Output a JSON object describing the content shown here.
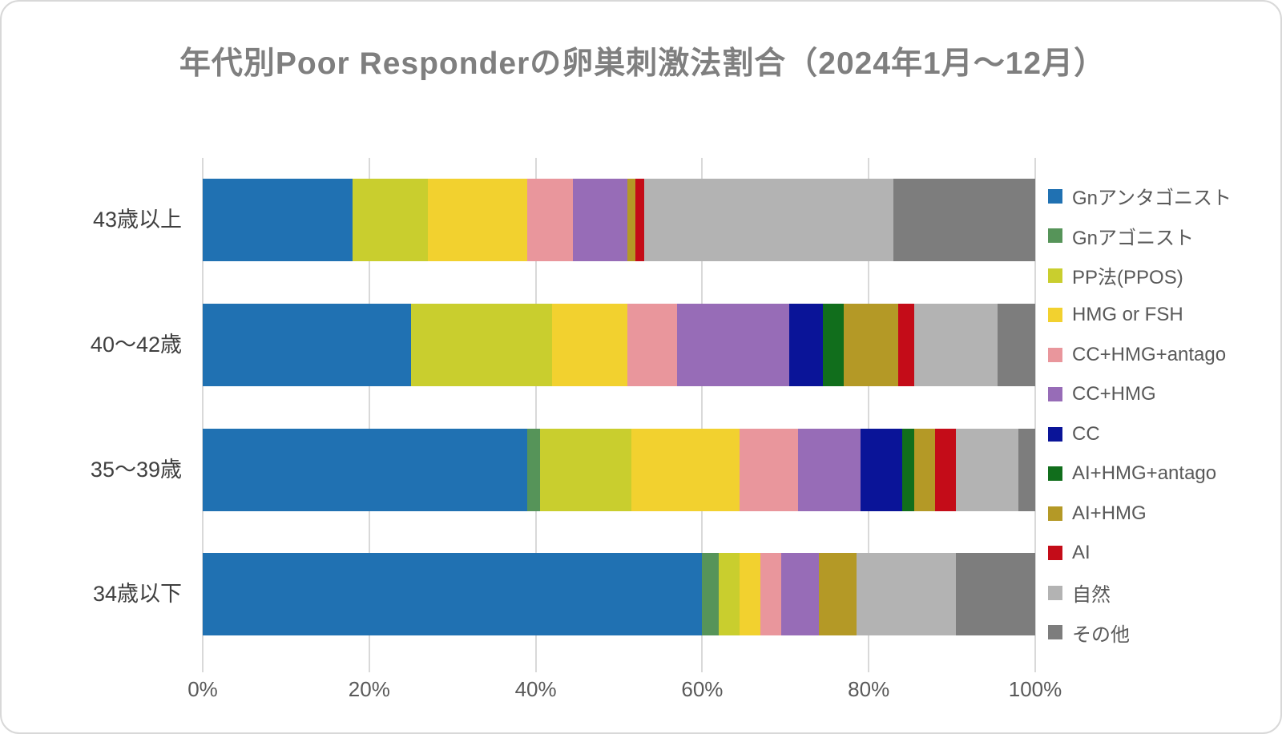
{
  "chart_data": {
    "type": "bar",
    "orientation": "horizontal-stacked",
    "title": "年代別Poor Responderの卵巣刺激法割合（2024年1月～12月）",
    "categories": [
      "43歳以上",
      "40～42歳",
      "35～39歳",
      "34歳以下"
    ],
    "series": [
      {
        "name": "Gnアンタゴニスト",
        "color": "#2071B2",
        "values": [
          18,
          25,
          39,
          60
        ]
      },
      {
        "name": "Gnアゴニスト",
        "color": "#569459",
        "values": [
          0,
          0,
          1.5,
          2
        ]
      },
      {
        "name": "PP法(PPOS)",
        "color": "#C9CE2E",
        "values": [
          9,
          17,
          11,
          2.5
        ]
      },
      {
        "name": "HMG or FSH",
        "color": "#F2D12F",
        "values": [
          12,
          9,
          13,
          2.5
        ]
      },
      {
        "name": "CC+HMG+antago",
        "color": "#E9969C",
        "values": [
          5.5,
          6,
          7,
          2.5
        ]
      },
      {
        "name": "CC+HMG",
        "color": "#976CB7",
        "values": [
          6.5,
          13.5,
          7.5,
          4.5
        ]
      },
      {
        "name": "CC",
        "color": "#0A1498",
        "values": [
          0,
          4,
          5,
          0
        ]
      },
      {
        "name": "AI+HMG+antago",
        "color": "#116E1C",
        "values": [
          0,
          2.5,
          1.5,
          0
        ]
      },
      {
        "name": "AI+HMG",
        "color": "#B49926",
        "values": [
          1,
          6.5,
          2.5,
          4.5
        ]
      },
      {
        "name": "AI",
        "color": "#C40C18",
        "values": [
          1,
          2,
          2.5,
          0
        ]
      },
      {
        "name": "自然",
        "color": "#B3B3B3",
        "values": [
          30,
          10,
          7.5,
          12
        ]
      },
      {
        "name": "その他",
        "color": "#7D7D7D",
        "values": [
          17,
          4.5,
          2,
          9.5
        ]
      }
    ],
    "value_unit": "%",
    "x_ticks": [
      "0%",
      "20%",
      "40%",
      "60%",
      "80%",
      "100%"
    ],
    "xlim": [
      0,
      100
    ],
    "grid": true,
    "legend_position": "right"
  },
  "colors": {
    "gridline": "#D9D9D9",
    "title_text": "#7F7F7F",
    "axis_label_text": "#595959",
    "category_label_text": "#3F3F3F",
    "background": "#FFFFFF",
    "frame_border": "#D8D8D8"
  }
}
